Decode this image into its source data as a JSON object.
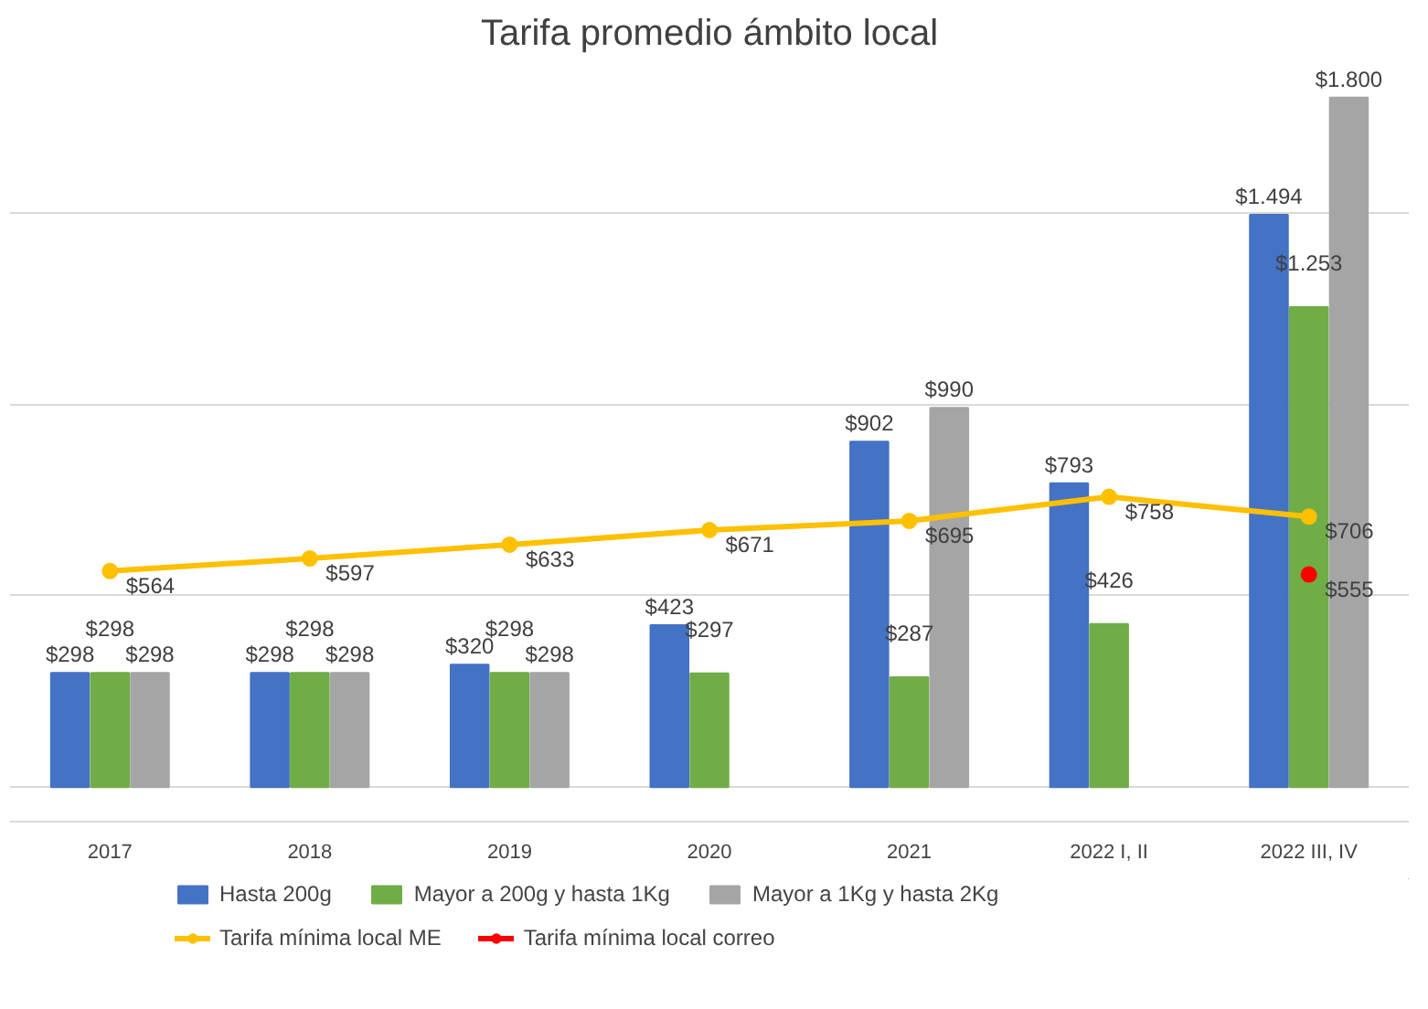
{
  "chart_data": {
    "type": "bar",
    "title": "Tarifa promedio ámbito local",
    "categories": [
      "2017",
      "2018",
      "2019",
      "2020",
      "2021",
      "2022 I, II",
      "2022 III, IV"
    ],
    "series": [
      {
        "name": "Hasta 200g",
        "color": "#4472c4",
        "values": [
          298,
          298,
          320,
          423,
          902,
          793,
          1494
        ],
        "value_labels": [
          "$298",
          "$298",
          "$320",
          "$423",
          "$902",
          "$793",
          "$1.494"
        ]
      },
      {
        "name": "Mayor a 200g y hasta 1Kg",
        "color": "#70ad47",
        "values": [
          298,
          298,
          298,
          297,
          287,
          426,
          1253
        ],
        "value_labels": [
          "$298",
          "$298",
          "$298",
          "$297",
          "$287",
          "$426",
          "$1.253"
        ]
      },
      {
        "name": "Mayor a 1Kg y hasta 2Kg",
        "color": "#a5a5a5",
        "values": [
          298,
          298,
          298,
          null,
          990,
          null,
          1800
        ],
        "value_labels": [
          "$298",
          "$298",
          "$298",
          null,
          "$990",
          null,
          "$1.800"
        ]
      },
      {
        "name": "Tarifa mínima local ME",
        "type": "line",
        "color": "#ffc000",
        "marker": "circle",
        "values": [
          564,
          597,
          633,
          671,
          695,
          758,
          706
        ],
        "value_labels": [
          "$564",
          "$597",
          "$633",
          "$671",
          "$695",
          "$758",
          "$706"
        ]
      },
      {
        "name": "Tarifa mínima local correo",
        "type": "line",
        "color": "#ff0000",
        "marker": "circle",
        "values": [
          null,
          null,
          null,
          null,
          null,
          null,
          555
        ],
        "value_labels": [
          null,
          null,
          null,
          null,
          null,
          null,
          "$555"
        ]
      }
    ],
    "tick_labels": "x",
    "grid": "y",
    "legend": "bottom"
  }
}
